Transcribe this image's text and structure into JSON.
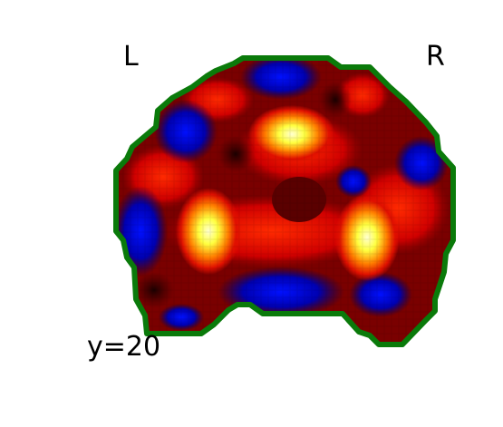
{
  "labels": {
    "left": "L",
    "right": "R",
    "slice": "y=20"
  },
  "colors": {
    "background": "#ffffff",
    "outline": "#0a7a0a",
    "negative": "#0000cc",
    "positive_low": "#8b0000",
    "positive_high": "#ffffcc"
  },
  "image": {
    "kind": "brain-slice-statistical-map",
    "colormap": "cold-hot"
  }
}
